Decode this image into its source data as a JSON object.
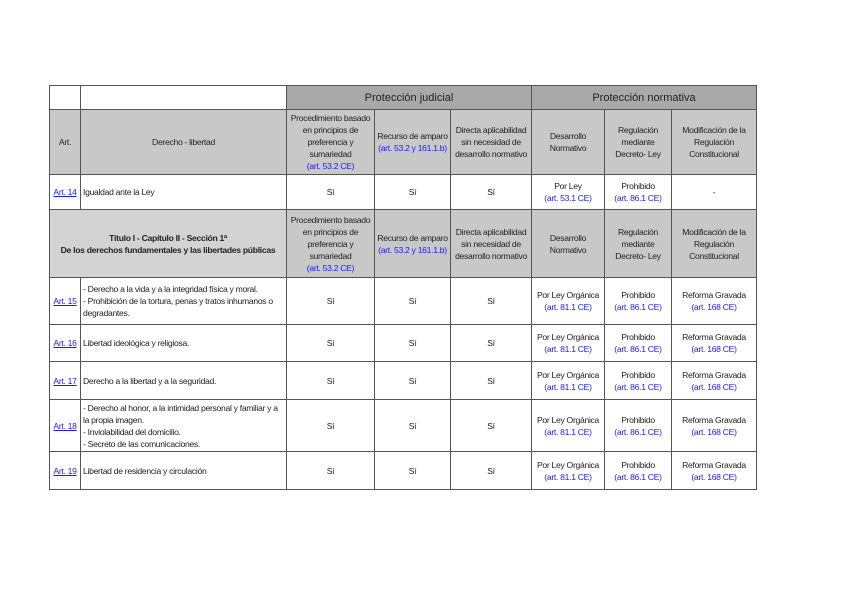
{
  "groups": {
    "judicial": "Protección judicial",
    "normativa": "Protección normativa"
  },
  "header": {
    "art": "Art.",
    "derecho": "Derecho - libertad"
  },
  "cols": {
    "proc": "Procedimiento basado en principios de preferencia y sumariedad",
    "proc_ref": "(art. 53.2 CE)",
    "recurso": "Recurso de amparo",
    "recurso_ref": "(art. 53.2 y 161.1.b)",
    "directa": "Directa aplicabilidad sin necesidad de desarrollo normativo",
    "desarrollo": "Desarrollo Normativo",
    "regulacion": "Regulación mediante Decreto- Ley",
    "modificacion": "Modificación de la Regulación Constitucional"
  },
  "art14": {
    "art": "Art. 14",
    "derecho": "Igualdad ante la Ley",
    "proc": "Sí",
    "recurso": "Sí",
    "directa": "Sí",
    "desarrollo": "Por Ley",
    "desarrollo_ref": "(art. 53.1 CE)",
    "regulacion": "Prohibido",
    "regulacion_ref": "(art. 86.1 CE)",
    "modificacion": "-"
  },
  "section": {
    "line1": "Título I - Capítulo II - Sección 1ª",
    "line2": "De los derechos fundamentales y las libertades públicas"
  },
  "rows": [
    {
      "art": "Art. 15",
      "derecho": [
        "- Derecho a la vida y a la integridad física y moral.",
        "- Prohibición de la tortura, penas y tratos inhumanos o degradantes."
      ],
      "proc": "Sí",
      "recurso": "Sí",
      "directa": "Sí",
      "desarrollo": "Por Ley Orgánica",
      "desarrollo_ref": "(art. 81.1 CE)",
      "regulacion": "Prohibido",
      "regulacion_ref": "(art. 86.1 CE)",
      "modificacion": "Reforma Gravada",
      "modificacion_ref": "(art. 168 CE)"
    },
    {
      "art": "Art. 16",
      "derecho": [
        "Libertad ideológica y religiosa."
      ],
      "proc": "Sí",
      "recurso": "Sí",
      "directa": "Sí",
      "desarrollo": "Por Ley Orgánica",
      "desarrollo_ref": "(art. 81.1 CE)",
      "regulacion": "Prohibido",
      "regulacion_ref": "(art. 86.1 CE)",
      "modificacion": "Reforma Gravada",
      "modificacion_ref": "(art. 168 CE)"
    },
    {
      "art": "Art. 17",
      "derecho": [
        "Derecho a la libertad y a la seguridad."
      ],
      "proc": "Sí",
      "recurso": "Sí",
      "directa": "Sí",
      "desarrollo": "Por Ley Orgánica",
      "desarrollo_ref": "(art. 81.1 CE)",
      "regulacion": "Prohibido",
      "regulacion_ref": "(art. 86.1 CE)",
      "modificacion": "Reforma Gravada",
      "modificacion_ref": "(art. 168 CE)"
    },
    {
      "art": "Art. 18",
      "derecho": [
        "- Derecho al honor, a la intimidad personal y familiar y a la propia imagen.",
        "- Inviolabilidad del domicilio.",
        "- Secreto de las comunicaciones."
      ],
      "proc": "Sí",
      "recurso": "Sí",
      "directa": "Sí",
      "desarrollo": "Por Ley Orgánica",
      "desarrollo_ref": "(art. 81.1 CE)",
      "regulacion": "Prohibido",
      "regulacion_ref": "(art. 86.1 CE)",
      "modificacion": "Reforma Gravada",
      "modificacion_ref": "(art. 168 CE)"
    },
    {
      "art": "Art. 19",
      "derecho": [
        "Libertad de residencia y circulación"
      ],
      "proc": "Sí",
      "recurso": "Sí",
      "directa": "Sí",
      "desarrollo": "Por Ley Orgánica",
      "desarrollo_ref": "(art. 81.1 CE)",
      "regulacion": "Prohibido",
      "regulacion_ref": "(art. 86.1 CE)",
      "modificacion": "Reforma Gravada",
      "modificacion_ref": "(art. 168 CE)"
    }
  ]
}
